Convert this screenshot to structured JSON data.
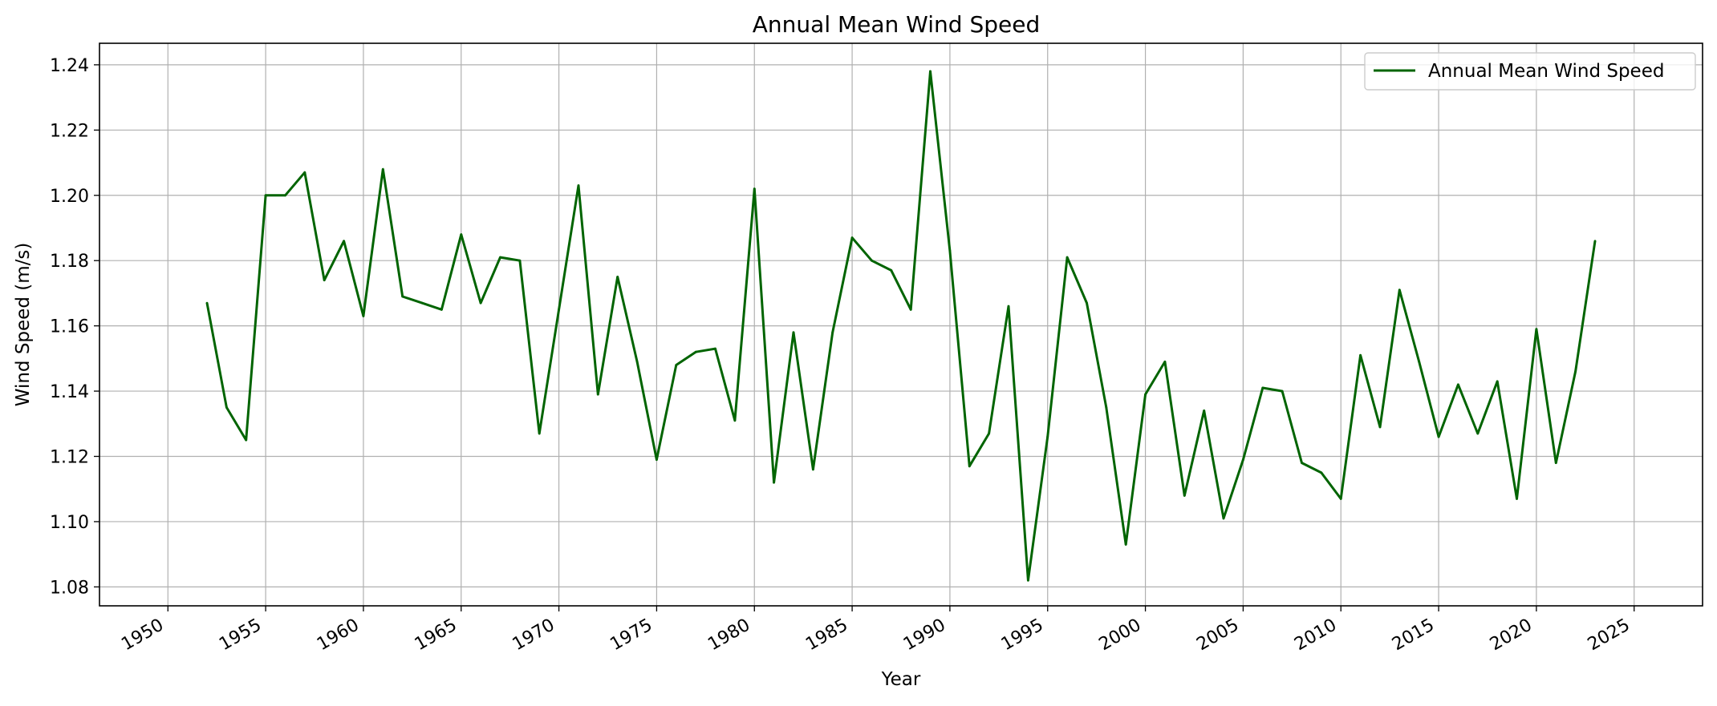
{
  "chart_data": {
    "type": "line",
    "title": "Annual Mean Wind Speed",
    "xlabel": "Year",
    "ylabel": "Wind Speed (m/s)",
    "xlim": [
      1946.5,
      2028.5
    ],
    "ylim": [
      1.0742,
      1.2466
    ],
    "x_ticks": [
      1950,
      1955,
      1960,
      1965,
      1970,
      1975,
      1980,
      1985,
      1990,
      1995,
      2000,
      2005,
      2010,
      2015,
      2020,
      2025
    ],
    "x_tick_labels": [
      "1950",
      "1955",
      "1960",
      "1965",
      "1970",
      "1975",
      "1980",
      "1985",
      "1990",
      "1995",
      "2000",
      "2005",
      "2010",
      "2015",
      "2020",
      "2025"
    ],
    "y_ticks": [
      1.08,
      1.1,
      1.12,
      1.14,
      1.16,
      1.18,
      1.2,
      1.22,
      1.24
    ],
    "y_tick_labels": [
      "1.08",
      "1.10",
      "1.12",
      "1.14",
      "1.16",
      "1.18",
      "1.20",
      "1.22",
      "1.24"
    ],
    "grid": true,
    "legend_position": "top-right",
    "series": [
      {
        "name": "Annual Mean Wind Speed",
        "color": "#006400",
        "x": [
          1952,
          1953,
          1954,
          1955,
          1956,
          1957,
          1958,
          1959,
          1960,
          1961,
          1962,
          1963,
          1964,
          1965,
          1966,
          1967,
          1968,
          1969,
          1970,
          1971,
          1972,
          1973,
          1974,
          1975,
          1976,
          1977,
          1978,
          1979,
          1980,
          1981,
          1982,
          1983,
          1984,
          1985,
          1986,
          1987,
          1988,
          1989,
          1990,
          1991,
          1992,
          1993,
          1994,
          1995,
          1996,
          1997,
          1998,
          1999,
          2000,
          2001,
          2002,
          2003,
          2004,
          2005,
          2006,
          2007,
          2008,
          2009,
          2010,
          2011,
          2012,
          2013,
          2014,
          2015,
          2016,
          2017,
          2018,
          2019,
          2020,
          2021,
          2022,
          2023
        ],
        "values": [
          1.167,
          1.135,
          1.125,
          1.2,
          1.2,
          1.207,
          1.174,
          1.186,
          1.163,
          1.208,
          1.169,
          1.167,
          1.165,
          1.188,
          1.167,
          1.181,
          1.18,
          1.127,
          1.165,
          1.203,
          1.139,
          1.175,
          1.149,
          1.119,
          1.148,
          1.152,
          1.153,
          1.131,
          1.202,
          1.112,
          1.158,
          1.116,
          1.158,
          1.187,
          1.18,
          1.177,
          1.165,
          1.238,
          1.183,
          1.117,
          1.127,
          1.166,
          1.082,
          1.126,
          1.181,
          1.167,
          1.135,
          1.093,
          1.139,
          1.149,
          1.108,
          1.134,
          1.101,
          1.119,
          1.141,
          1.14,
          1.118,
          1.115,
          1.107,
          1.151,
          1.129,
          1.171,
          1.149,
          1.126,
          1.142,
          1.127,
          1.143,
          1.107,
          1.159,
          1.118,
          1.146,
          1.186
        ]
      }
    ]
  }
}
